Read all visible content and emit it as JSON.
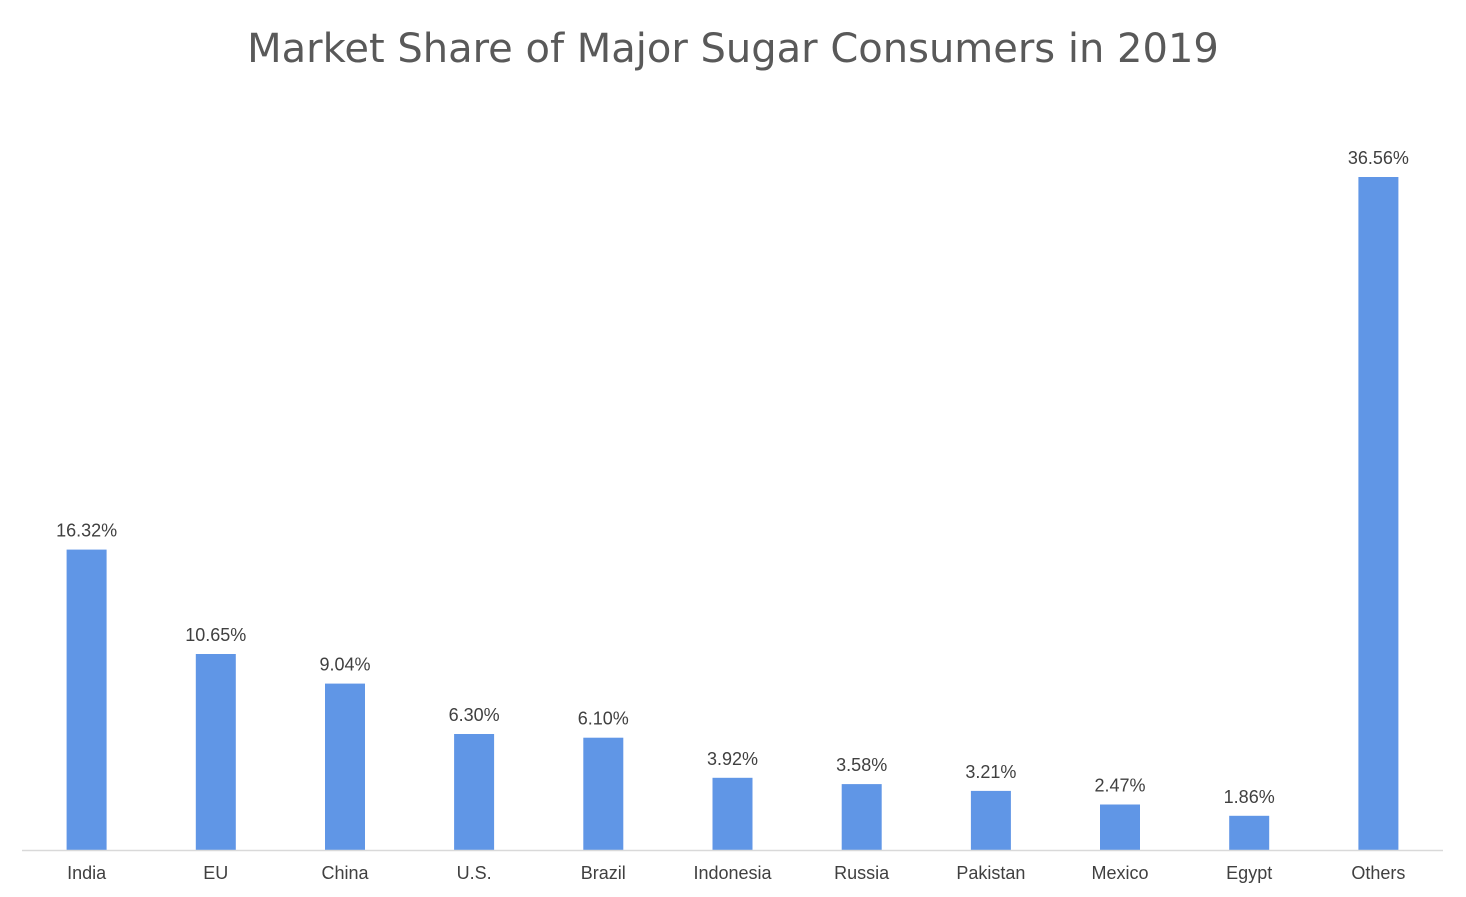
{
  "chart_data": {
    "type": "bar",
    "title": "Market Share of Major Sugar Consumers in 2019",
    "categories": [
      "India",
      "EU",
      "China",
      "U.S.",
      "Brazil",
      "Indonesia",
      "Russia",
      "Pakistan",
      "Mexico",
      "Egypt",
      "Others"
    ],
    "values": [
      16.32,
      10.65,
      9.04,
      6.3,
      6.1,
      3.92,
      3.58,
      3.21,
      2.47,
      1.86,
      36.56
    ],
    "data_labels": [
      "16.32%",
      "10.65%",
      "9.04%",
      "6.30%",
      "6.10%",
      "3.92%",
      "3.58%",
      "3.21%",
      "2.47%",
      "1.86%",
      "36.56%"
    ],
    "xlabel": "",
    "ylabel": "",
    "ylim": [
      0,
      36.56
    ],
    "grid": false,
    "legend": "none",
    "colors": {
      "bar": "#6096E6",
      "axis": "#D9D9D9",
      "title": "#595959",
      "label": "#404040"
    }
  }
}
